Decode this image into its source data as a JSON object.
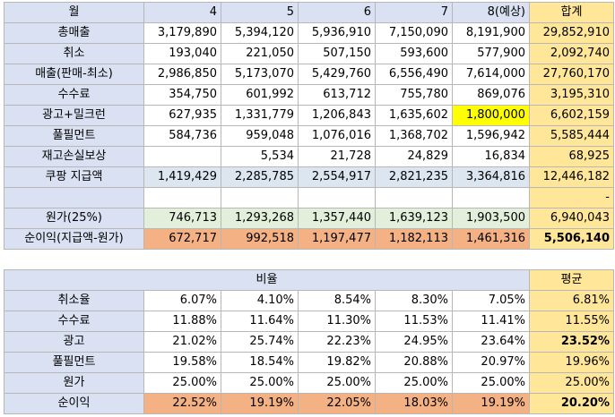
{
  "top": {
    "header": {
      "label": "월",
      "months": [
        "4",
        "5",
        "6",
        "7",
        "8(예상)"
      ],
      "total": "합계"
    },
    "rows": [
      {
        "label": "총매출",
        "values": [
          "3,179,890",
          "5,394,120",
          "5,936,910",
          "7,150,090",
          "8,191,900"
        ],
        "total": "29,852,910"
      },
      {
        "label": "취소",
        "values": [
          "193,040",
          "221,050",
          "507,150",
          "593,600",
          "577,900"
        ],
        "total": "2,092,740"
      },
      {
        "label": "매출(판매-최소)",
        "values": [
          "2,986,850",
          "5,173,070",
          "5,429,760",
          "6,556,490",
          "7,614,000"
        ],
        "total": "27,760,170"
      },
      {
        "label": "수수료",
        "values": [
          "354,750",
          "601,992",
          "613,712",
          "755,780",
          "869,076"
        ],
        "total": "3,195,310"
      },
      {
        "label": "광고+밀크런",
        "values": [
          "627,935",
          "1,331,779",
          "1,206,843",
          "1,635,602",
          "1,800,000"
        ],
        "total": "6,602,159"
      },
      {
        "label": "풀필먼트",
        "values": [
          "584,736",
          "959,048",
          "1,076,016",
          "1,368,702",
          "1,596,942"
        ],
        "total": "5,585,444"
      },
      {
        "label": "재고손실보상",
        "values": [
          "",
          "5,534",
          "21,728",
          "24,829",
          "16,834"
        ],
        "total": "68,925"
      },
      {
        "label": "쿠팡 지급액",
        "values": [
          "1,419,429",
          "2,285,785",
          "2,554,917",
          "2,821,235",
          "3,364,816"
        ],
        "total": "12,446,182"
      },
      {
        "label": "",
        "values": [
          "",
          "",
          "",
          "",
          ""
        ],
        "total": "-"
      },
      {
        "label": "원가(25%)",
        "values": [
          "746,713",
          "1,293,268",
          "1,357,440",
          "1,639,123",
          "1,903,500"
        ],
        "total": "6,940,043"
      },
      {
        "label": "순이익(지급액-원가)",
        "values": [
          "672,717",
          "992,518",
          "1,197,477",
          "1,182,113",
          "1,461,316"
        ],
        "total": "5,506,140"
      }
    ]
  },
  "bottom": {
    "header": {
      "label": "비율",
      "total": "평균"
    },
    "rows": [
      {
        "label": "취소율",
        "values": [
          "6.07%",
          "4.10%",
          "8.54%",
          "8.30%",
          "7.05%"
        ],
        "total": "6.81%"
      },
      {
        "label": "수수료",
        "values": [
          "11.88%",
          "11.64%",
          "11.30%",
          "11.53%",
          "11.41%"
        ],
        "total": "11.55%"
      },
      {
        "label": "광고",
        "values": [
          "21.02%",
          "25.74%",
          "22.23%",
          "24.95%",
          "23.64%"
        ],
        "total": "23.52%"
      },
      {
        "label": "풀필먼트",
        "values": [
          "19.58%",
          "18.54%",
          "19.82%",
          "20.88%",
          "20.97%"
        ],
        "total": "19.96%"
      },
      {
        "label": "원가",
        "values": [
          "25.00%",
          "25.00%",
          "25.00%",
          "25.00%",
          "25.00%"
        ],
        "total": "25.00%"
      },
      {
        "label": "순이익",
        "values": [
          "22.52%",
          "19.19%",
          "22.05%",
          "18.03%",
          "19.19%"
        ],
        "total": "20.20%"
      }
    ]
  },
  "colors": {
    "header": "#d9e1f2",
    "total": "#ffe699",
    "payout_row": "#dce6f1",
    "cost_row": "#e2efda",
    "profit_row": "#f4b183",
    "highlight": "#ffff00"
  }
}
